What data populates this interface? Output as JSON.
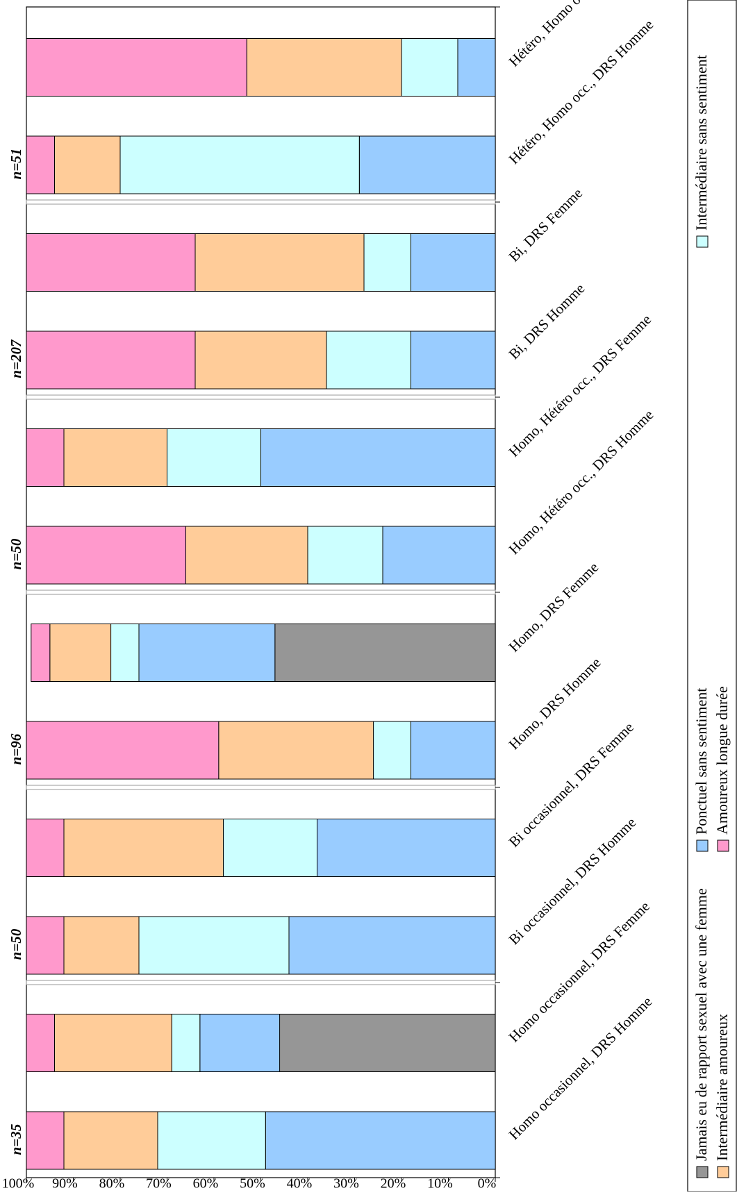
{
  "chart_data": {
    "type": "bar",
    "stacked": true,
    "orientation": "rotated-90",
    "value_axis": {
      "ticks": [
        "100%",
        "90%",
        "80%",
        "70%",
        "60%",
        "50%",
        "40%",
        "30%",
        "20%",
        "10%",
        "0%"
      ],
      "range": [
        0,
        100
      ],
      "grid": false
    },
    "categories": [
      "Homo occasionnel, DRS Homme",
      "Homo occasionnel, DRS Femme",
      "Bi occasionnel, DRS Homme",
      "Bi occasionnel, DRS Femme",
      "Homo, DRS Homme",
      "Homo, DRS Femme",
      "Homo, Hétéro occ., DRS Homme",
      "Homo, Hétéro occ., DRS Femme",
      "Bi, DRS Homme",
      "Bi, DRS Femme",
      "Hétéro, Homo occ., DRS Homme",
      "Hétéro, Homo occ., DRS Femme"
    ],
    "group_labels": [
      "n=35",
      "n=50",
      "n=96",
      "n=50",
      "n=207",
      "n=51"
    ],
    "series": [
      {
        "name": "Jamais eu de rapport sexuel avec une femme",
        "color": "#969696",
        "values": [
          0,
          46,
          0,
          0,
          0,
          47,
          0,
          0,
          0,
          0,
          0,
          0
        ]
      },
      {
        "name": "Ponctuel sans sentiment",
        "color": "#99ccff",
        "values": [
          49,
          17,
          44,
          38,
          18,
          29,
          24,
          50,
          18,
          18,
          29,
          8
        ]
      },
      {
        "name": "Intermédiaire sans sentiment",
        "color": "#ccffff",
        "values": [
          23,
          6,
          32,
          20,
          8,
          6,
          16,
          20,
          18,
          10,
          51,
          12
        ]
      },
      {
        "name": "Intermédiaire amoureux",
        "color": "#ffcc99",
        "values": [
          20,
          25,
          16,
          34,
          33,
          13,
          26,
          22,
          28,
          36,
          14,
          33
        ]
      },
      {
        "name": "Amoureux longue durée",
        "color": "#ff99cc",
        "values": [
          8,
          6,
          8,
          8,
          41,
          4,
          34,
          8,
          36,
          36,
          6,
          47
        ]
      }
    ],
    "legend_position": "bottom-rotated"
  }
}
